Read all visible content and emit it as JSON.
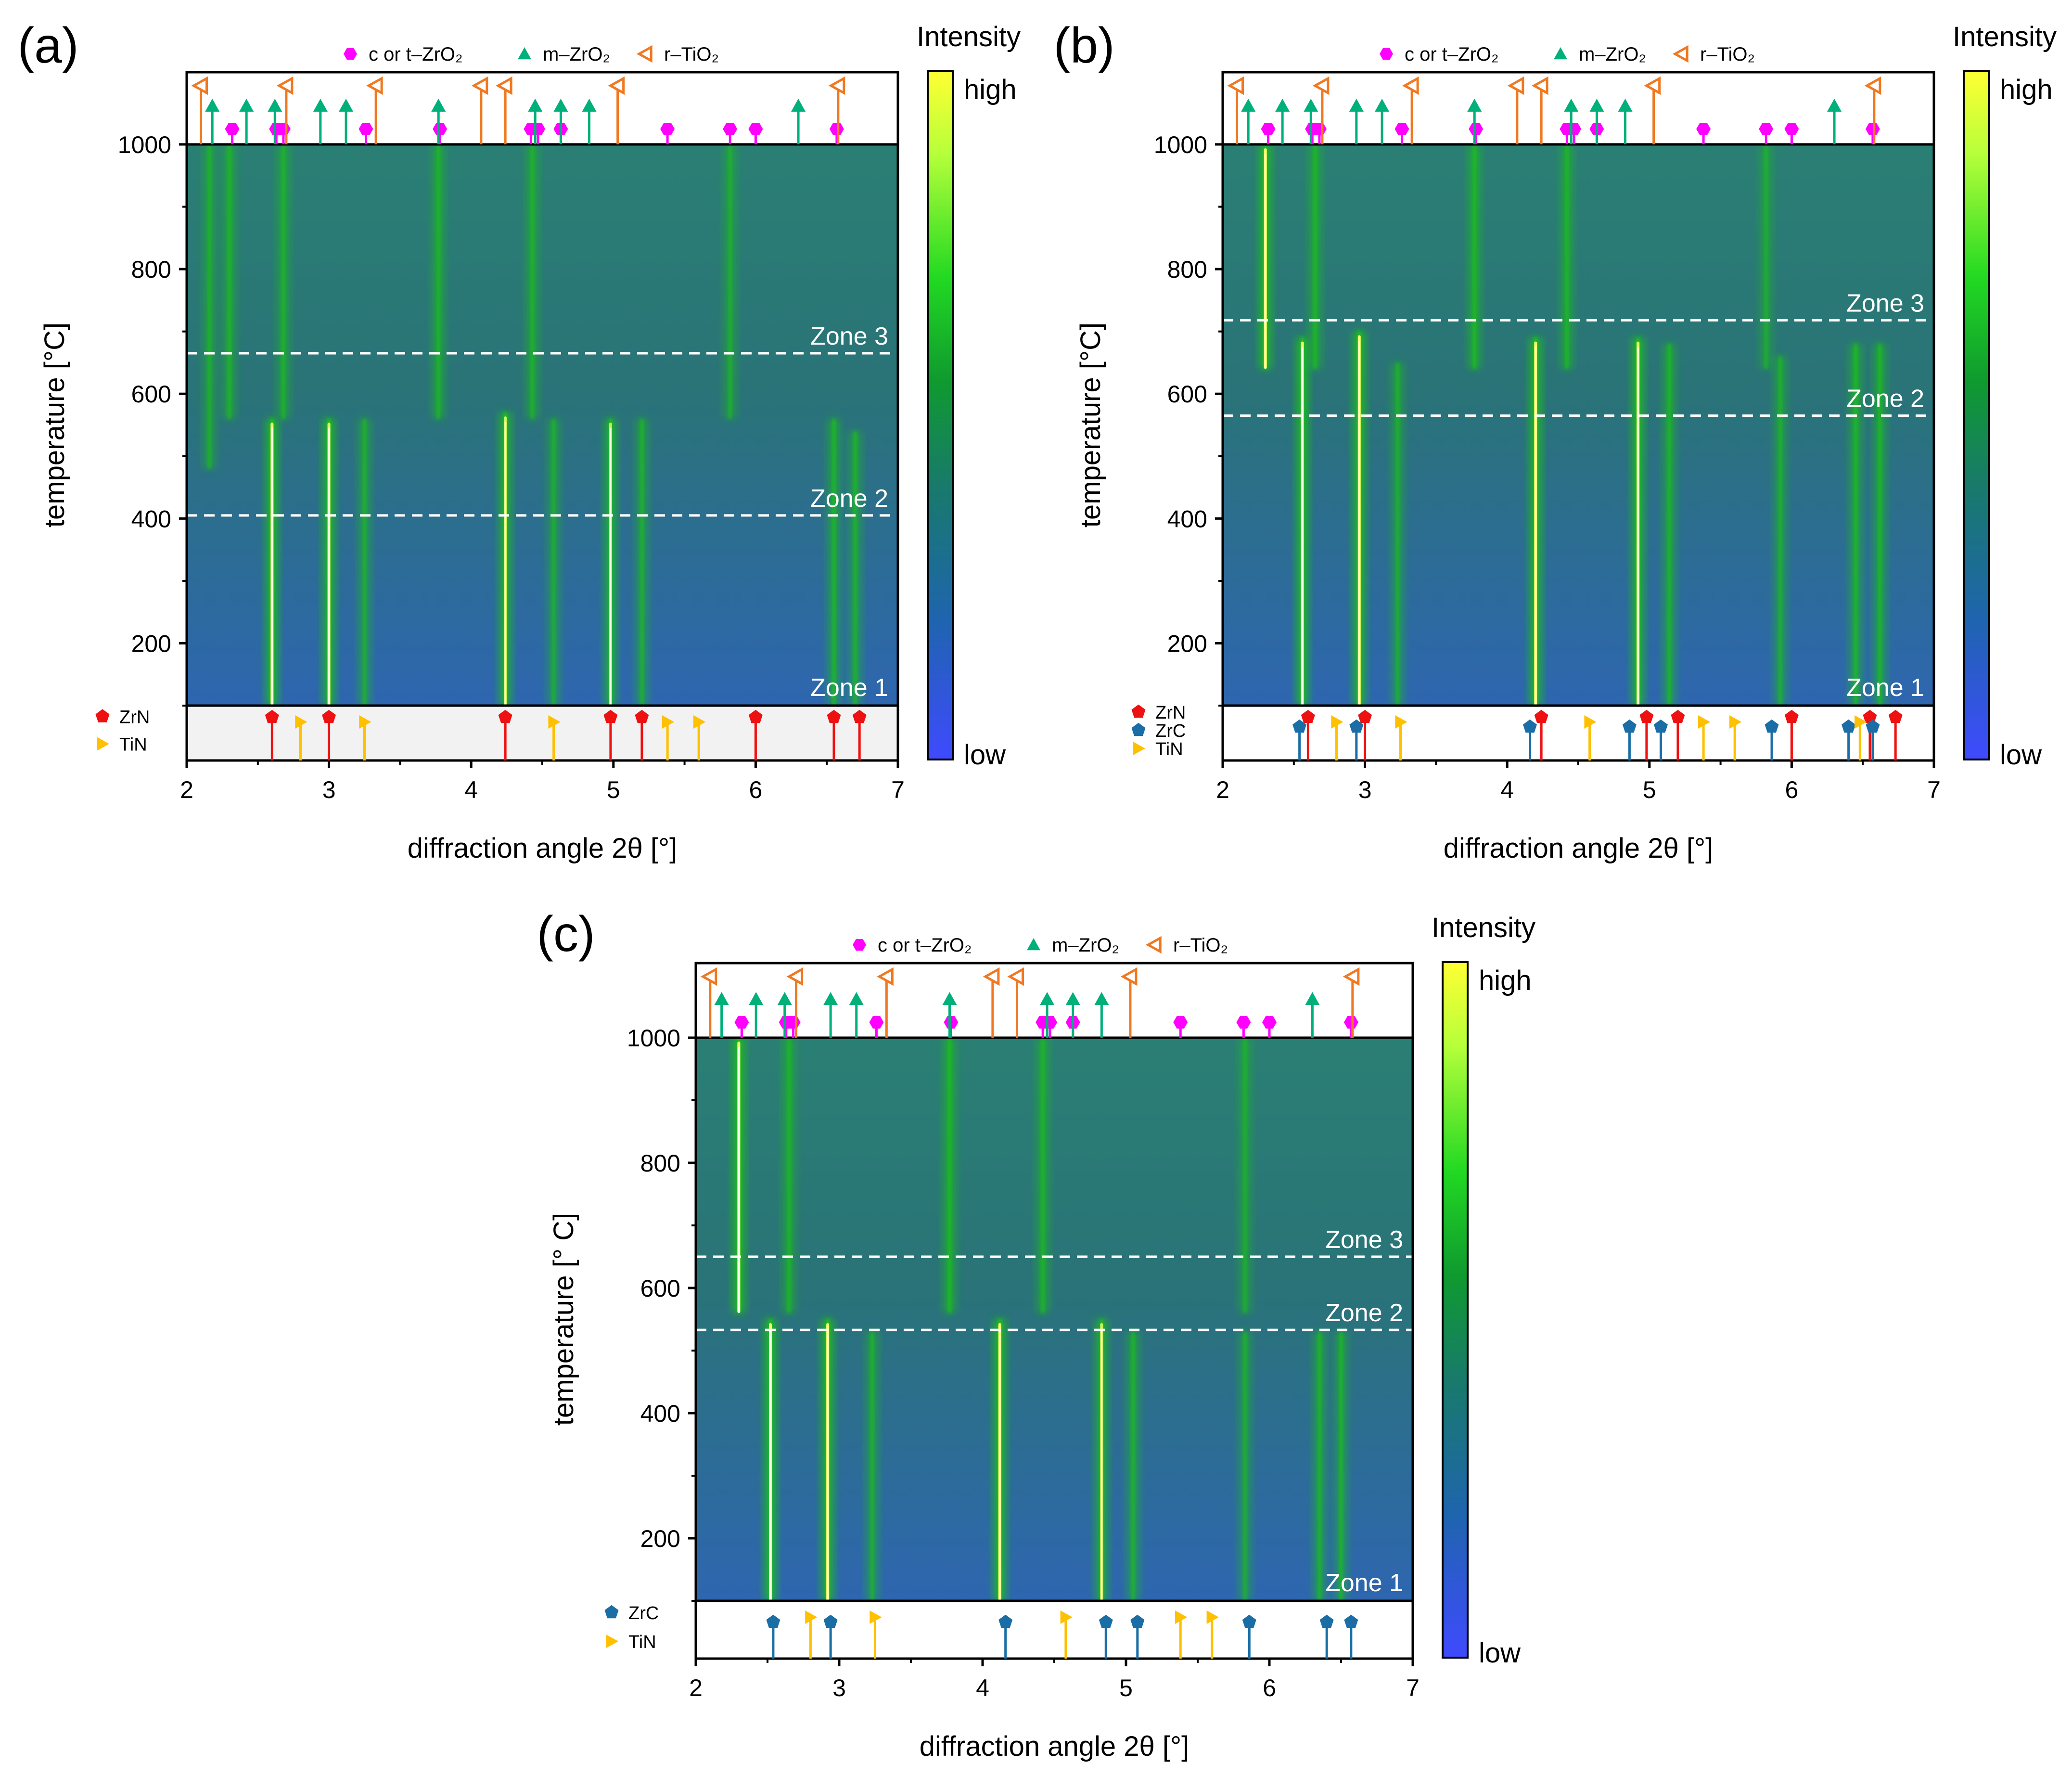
{
  "chart_data": [
    {
      "type": "heatmap",
      "panel": "(a)",
      "xlabel": "diffraction angle 2θ [°]",
      "ylabel": "temperature [°C]",
      "xlim": [
        2,
        7
      ],
      "ylim": [
        100,
        1000
      ],
      "xticks": [
        "2",
        "3",
        "4",
        "5",
        "6",
        "7"
      ],
      "yticks": [
        "200",
        "400",
        "600",
        "800",
        "1000"
      ],
      "colorbar": {
        "title": "Intensity",
        "high": "high",
        "low": "low"
      },
      "zones": [
        {
          "label": "Zone 1",
          "temperature": 100
        },
        {
          "label": "Zone 2",
          "temperature": 405
        },
        {
          "label": "Zone 3",
          "temperature": 665
        }
      ],
      "peaks": [
        {
          "x": 2.6,
          "t_end": 560,
          "strength": 1.0
        },
        {
          "x": 3.0,
          "t_end": 560,
          "strength": 0.9
        },
        {
          "x": 3.25,
          "t_end": 560,
          "strength": 0.35
        },
        {
          "x": 4.24,
          "t_end": 570,
          "strength": 0.85
        },
        {
          "x": 4.58,
          "t_end": 560,
          "strength": 0.3
        },
        {
          "x": 4.98,
          "t_end": 560,
          "strength": 0.75
        },
        {
          "x": 5.2,
          "t_end": 560,
          "strength": 0.35
        },
        {
          "x": 6.55,
          "t_end": 560,
          "strength": 0.45
        },
        {
          "x": 6.7,
          "t_end": 540,
          "strength": 0.4
        },
        {
          "x": 2.16,
          "t_start": 480,
          "strength": 0.3
        },
        {
          "x": 2.3,
          "t_start": 560,
          "strength": 0.4
        },
        {
          "x": 2.68,
          "t_start": 560,
          "strength": 0.35
        },
        {
          "x": 3.77,
          "t_start": 560,
          "strength": 0.4
        },
        {
          "x": 4.43,
          "t_start": 560,
          "strength": 0.35
        },
        {
          "x": 5.82,
          "t_start": 560,
          "strength": 0.25
        }
      ],
      "top_legend": [
        "c or t–ZrO₂",
        "m–ZrO₂",
        "r–TiO₂"
      ],
      "top_ref": {
        "c or t–ZrO₂": [
          2.32,
          2.63,
          2.68,
          3.26,
          3.78,
          4.42,
          4.47,
          4.63,
          5.38,
          5.82,
          6.0,
          6.57
        ],
        "m–ZrO₂": [
          2.18,
          2.42,
          2.62,
          2.94,
          3.12,
          3.77,
          4.45,
          4.63,
          4.83,
          6.3
        ],
        "r–TiO₂": [
          2.1,
          2.7,
          3.33,
          4.07,
          4.24,
          5.03,
          6.58
        ]
      },
      "bottom_legend": [
        "ZrN",
        "TiN"
      ],
      "bottom_ref": {
        "ZrN": [
          2.6,
          3.0,
          4.24,
          4.98,
          5.2,
          6.0,
          6.55,
          6.73
        ],
        "TiN": [
          2.8,
          3.25,
          4.58,
          5.38,
          5.6
        ]
      }
    },
    {
      "type": "heatmap",
      "panel": "(b)",
      "xlabel": "diffraction angle 2θ [°]",
      "ylabel": "temperature [°C]",
      "xlim": [
        2,
        7
      ],
      "ylim": [
        100,
        1000
      ],
      "xticks": [
        "2",
        "3",
        "4",
        "5",
        "6",
        "7"
      ],
      "yticks": [
        "200",
        "400",
        "600",
        "800",
        "1000"
      ],
      "colorbar": {
        "title": "Intensity",
        "high": "high",
        "low": "low"
      },
      "zones": [
        {
          "label": "Zone 1",
          "temperature": 100
        },
        {
          "label": "Zone 2",
          "temperature": 565
        },
        {
          "label": "Zone 3",
          "temperature": 718
        }
      ],
      "peaks": [
        {
          "x": 2.3,
          "t_start": 640,
          "strength": 1.0
        },
        {
          "x": 2.56,
          "t_end": 690,
          "strength": 1.0
        },
        {
          "x": 2.96,
          "t_end": 700,
          "strength": 1.0
        },
        {
          "x": 3.23,
          "t_end": 650,
          "strength": 0.3
        },
        {
          "x": 4.2,
          "t_end": 690,
          "strength": 1.0
        },
        {
          "x": 4.92,
          "t_end": 690,
          "strength": 0.95
        },
        {
          "x": 5.14,
          "t_end": 680,
          "strength": 0.45
        },
        {
          "x": 5.92,
          "t_end": 660,
          "strength": 0.35
        },
        {
          "x": 6.45,
          "t_end": 680,
          "strength": 0.5
        },
        {
          "x": 6.62,
          "t_end": 680,
          "strength": 0.5
        },
        {
          "x": 2.65,
          "t_start": 640,
          "strength": 0.45
        },
        {
          "x": 3.77,
          "t_start": 640,
          "strength": 0.55
        },
        {
          "x": 4.42,
          "t_start": 640,
          "strength": 0.45
        },
        {
          "x": 5.82,
          "t_start": 640,
          "strength": 0.2
        }
      ],
      "top_legend": [
        "c or t–ZrO₂",
        "m–ZrO₂",
        "r–TiO₂"
      ],
      "top_ref": {
        "c or t–ZrO₂": [
          2.32,
          2.63,
          2.68,
          3.26,
          3.78,
          4.42,
          4.47,
          4.63,
          5.38,
          5.82,
          6.0,
          6.57
        ],
        "m–ZrO₂": [
          2.18,
          2.42,
          2.62,
          2.94,
          3.12,
          3.77,
          4.45,
          4.63,
          4.83,
          6.3
        ],
        "r–TiO₂": [
          2.1,
          2.7,
          3.33,
          4.07,
          4.24,
          5.03,
          6.58
        ]
      },
      "bottom_legend": [
        "ZrN",
        "ZrC",
        "TiN"
      ],
      "bottom_ref": {
        "ZrN": [
          2.6,
          3.0,
          4.24,
          4.98,
          5.2,
          6.0,
          6.55,
          6.73
        ],
        "ZrC": [
          2.54,
          2.94,
          4.16,
          4.86,
          5.08,
          5.86,
          6.4,
          6.57
        ],
        "TiN": [
          2.8,
          3.25,
          4.58,
          5.38,
          5.6,
          6.48
        ]
      }
    },
    {
      "type": "heatmap",
      "panel": "(c)",
      "xlabel": "diffraction angle 2θ [°]",
      "ylabel": "temperature [° C]",
      "xlim": [
        2,
        7
      ],
      "ylim": [
        100,
        1000
      ],
      "xticks": [
        "2",
        "3",
        "4",
        "5",
        "6",
        "7"
      ],
      "yticks": [
        "200",
        "400",
        "600",
        "800",
        "1000"
      ],
      "colorbar": {
        "title": "Intensity",
        "high": "high",
        "low": "low"
      },
      "zones": [
        {
          "label": "Zone 1",
          "temperature": 100
        },
        {
          "label": "Zone 2",
          "temperature": 533
        },
        {
          "label": "Zone 3",
          "temperature": 650
        }
      ],
      "peaks": [
        {
          "x": 2.3,
          "t_start": 560,
          "strength": 1.0
        },
        {
          "x": 2.52,
          "t_end": 550,
          "strength": 1.0
        },
        {
          "x": 2.92,
          "t_end": 550,
          "strength": 1.0
        },
        {
          "x": 3.23,
          "t_end": 530,
          "strength": 0.35
        },
        {
          "x": 4.12,
          "t_end": 550,
          "strength": 1.0
        },
        {
          "x": 4.83,
          "t_end": 550,
          "strength": 0.8
        },
        {
          "x": 5.05,
          "t_end": 530,
          "strength": 0.4
        },
        {
          "x": 5.83,
          "t_end": 530,
          "strength": 0.3
        },
        {
          "x": 6.35,
          "t_end": 530,
          "strength": 0.4
        },
        {
          "x": 6.5,
          "t_end": 530,
          "strength": 0.4
        },
        {
          "x": 2.65,
          "t_start": 560,
          "strength": 0.4
        },
        {
          "x": 3.77,
          "t_start": 560,
          "strength": 0.55
        },
        {
          "x": 4.42,
          "t_start": 560,
          "strength": 0.4
        },
        {
          "x": 5.83,
          "t_start": 560,
          "strength": 0.25
        }
      ],
      "top_legend": [
        "c or t–ZrO₂",
        "m–ZrO₂",
        "r–TiO₂"
      ],
      "top_ref": {
        "c or t–ZrO₂": [
          2.32,
          2.63,
          2.68,
          3.26,
          3.78,
          4.42,
          4.47,
          4.63,
          5.38,
          5.82,
          6.0,
          6.57
        ],
        "m–ZrO₂": [
          2.18,
          2.42,
          2.62,
          2.94,
          3.12,
          3.77,
          4.45,
          4.63,
          4.83,
          6.3
        ],
        "r–TiO₂": [
          2.1,
          2.7,
          3.33,
          4.07,
          4.24,
          5.03,
          6.58
        ]
      },
      "bottom_legend": [
        "ZrC",
        "TiN"
      ],
      "bottom_ref": {
        "ZrC": [
          2.54,
          2.94,
          4.16,
          4.86,
          5.08,
          5.86,
          6.4,
          6.57
        ],
        "TiN": [
          2.8,
          3.25,
          4.58,
          5.38,
          5.6
        ]
      }
    }
  ],
  "colors": {
    "map_base": "#2c7a78",
    "map_low": "#2f63d6",
    "peak_green": "#1fbf1f",
    "peak_core": "#f4ff6a",
    "zro2_cubic": "#ff00ff",
    "zro2_mono": "#00b07a",
    "tio2_rutile": "#f07820",
    "zrn": "#ee1111",
    "zrc": "#1a6ea5",
    "tin": "#ffc000"
  }
}
